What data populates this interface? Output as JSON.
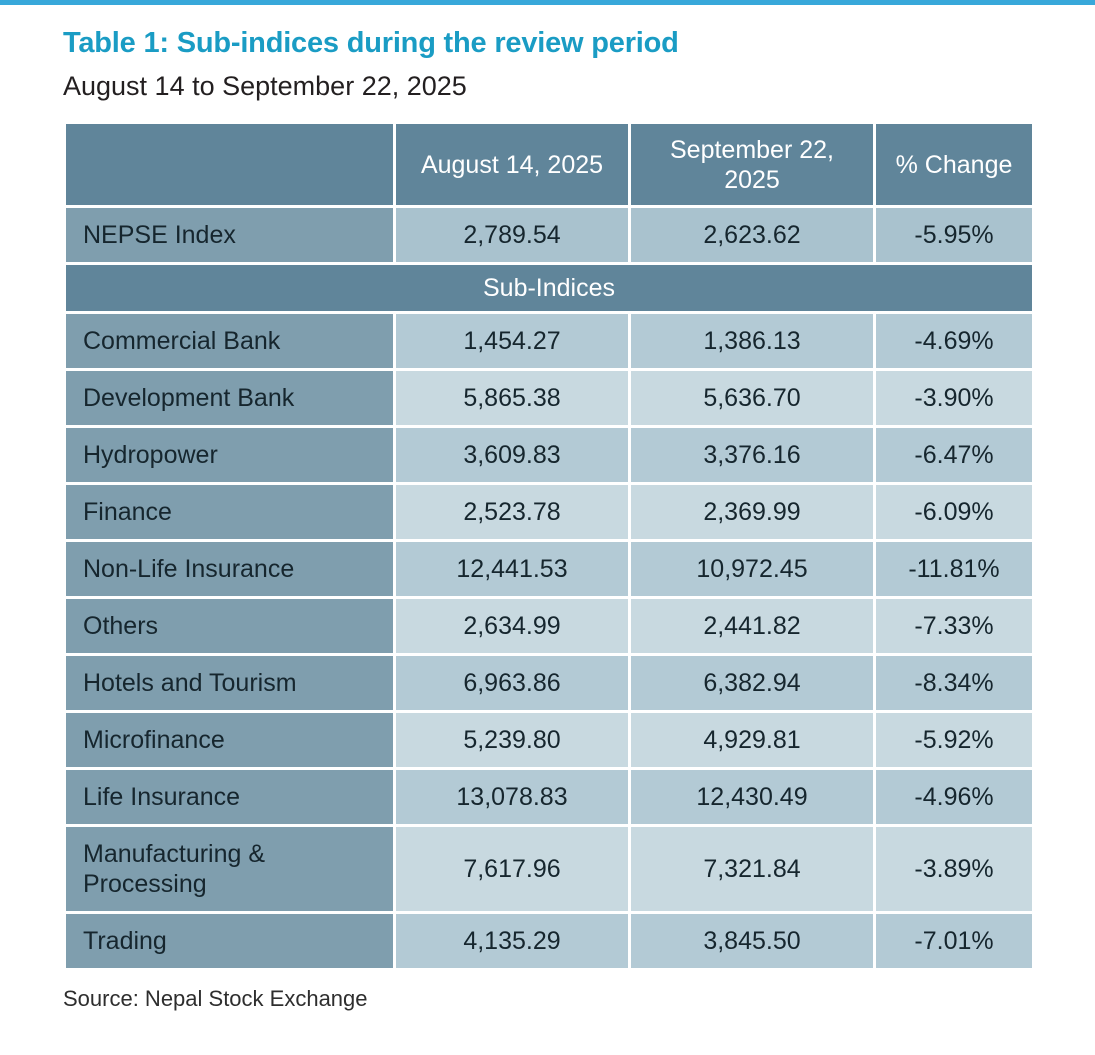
{
  "page": {
    "title": "Table 1: Sub-indices during the review period",
    "subtitle": "August 14 to September 22, 2025",
    "source": "Source: Nepal Stock Exchange"
  },
  "table": {
    "columns": [
      "",
      "August 14, 2025",
      "September 22, 2025",
      "% Change"
    ],
    "nepse": {
      "label": "NEPSE Index",
      "aug": "2,789.54",
      "sep": "2,623.62",
      "change": "-5.95%"
    },
    "section_header": "Sub-Indices",
    "rows": [
      {
        "label": "Commercial Bank",
        "aug": "1,454.27",
        "sep": "1,386.13",
        "change": "-4.69%"
      },
      {
        "label": "Development Bank",
        "aug": "5,865.38",
        "sep": "5,636.70",
        "change": "-3.90%"
      },
      {
        "label": "Hydropower",
        "aug": "3,609.83",
        "sep": "3,376.16",
        "change": "-6.47%"
      },
      {
        "label": "Finance",
        "aug": "2,523.78",
        "sep": "2,369.99",
        "change": "-6.09%"
      },
      {
        "label": "Non-Life Insurance",
        "aug": "12,441.53",
        "sep": "10,972.45",
        "change": "-11.81%"
      },
      {
        "label": "Others",
        "aug": "2,634.99",
        "sep": "2,441.82",
        "change": "-7.33%"
      },
      {
        "label": "Hotels and Tourism",
        "aug": "6,963.86",
        "sep": "6,382.94",
        "change": "-8.34%"
      },
      {
        "label": "Microfinance",
        "aug": "5,239.80",
        "sep": "4,929.81",
        "change": "-5.92%"
      },
      {
        "label": "Life Insurance",
        "aug": "13,078.83",
        "sep": "12,430.49",
        "change": "-4.96%"
      },
      {
        "label": "Manufacturing & Processing",
        "aug": "7,617.96",
        "sep": "7,321.84",
        "change": "-3.89%"
      },
      {
        "label": "Trading",
        "aug": "4,135.29",
        "sep": "3,845.50",
        "change": "-7.01%"
      }
    ]
  },
  "colors": {
    "rule": "#38a8da",
    "title": "#1a9cc4",
    "header-bg": "#60859a",
    "label-bg": "#7f9eae",
    "data-nepse": "#a9c2ce",
    "data-dark": "#b3cad5",
    "data-light": "#c8d9e0"
  }
}
